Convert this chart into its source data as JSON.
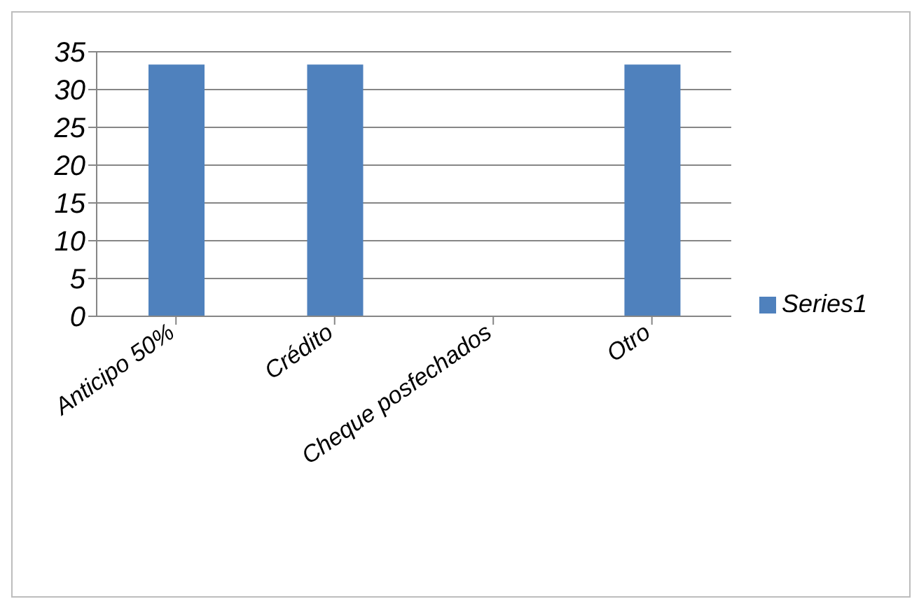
{
  "chart_data": {
    "type": "bar",
    "categories": [
      "Anticipo 50%",
      "Crédito",
      "Cheque posfechados",
      "Otro"
    ],
    "series": [
      {
        "name": "Series1",
        "color": "#4f81bd",
        "values": [
          33.3,
          33.3,
          0,
          33.3
        ]
      }
    ],
    "ylim": [
      0,
      35
    ],
    "yticks": [
      0,
      5,
      10,
      15,
      20,
      25,
      30,
      35
    ],
    "grid": "y",
    "legend": "right"
  }
}
